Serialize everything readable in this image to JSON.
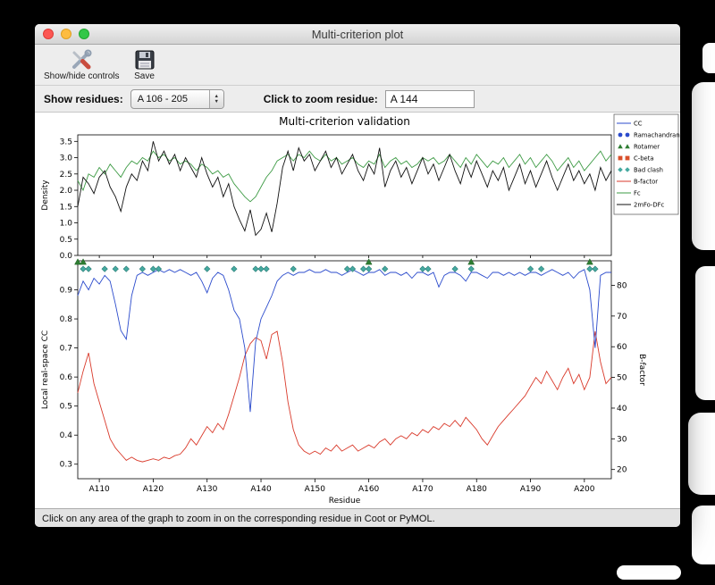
{
  "window": {
    "title": "Multi-criterion plot",
    "toolbar": {
      "show_hide_label": "Show/hide controls",
      "save_label": "Save"
    },
    "controls": {
      "show_residues_label": "Show residues:",
      "residue_range_value": "A 106 - 205",
      "zoom_residue_label": "Click to zoom residue:",
      "zoom_residue_value": "A 144"
    },
    "status_bar": "Click on any area of the graph to zoom in on the corresponding residue in Coot or PyMOL."
  },
  "icons": {
    "stepper_up": "▲",
    "stepper_down": "▼"
  },
  "chart_data": {
    "type": "line",
    "title": "Multi-criterion validation",
    "xlabel": "Residue",
    "x_range": [
      106,
      205
    ],
    "x_ticks": [
      "A110",
      "A120",
      "A130",
      "A140",
      "A150",
      "A160",
      "A170",
      "A180",
      "A190",
      "A200"
    ],
    "top_plot": {
      "ylabel": "Density",
      "ylim": [
        0,
        3.7
      ],
      "yticks": [
        0.0,
        0.5,
        1.0,
        1.5,
        2.0,
        2.5,
        3.0,
        3.5
      ],
      "series": [
        {
          "name": "Fc",
          "color": "#3e9b45",
          "values": [
            2.3,
            2.0,
            2.5,
            2.4,
            2.7,
            2.5,
            2.8,
            2.6,
            2.4,
            2.7,
            2.9,
            2.8,
            3.0,
            2.9,
            3.2,
            3.0,
            3.1,
            2.9,
            3.0,
            2.8,
            2.9,
            2.8,
            2.6,
            2.8,
            2.7,
            2.5,
            2.6,
            2.4,
            2.5,
            2.2,
            2.0,
            1.8,
            1.65,
            1.8,
            2.1,
            2.4,
            2.6,
            2.9,
            3.0,
            3.1,
            2.9,
            3.1,
            3.0,
            3.2,
            3.0,
            2.9,
            3.1,
            2.9,
            3.0,
            2.8,
            2.9,
            3.0,
            2.8,
            2.7,
            2.9,
            2.8,
            3.1,
            2.7,
            2.9,
            3.0,
            2.8,
            2.9,
            2.7,
            2.8,
            3.0,
            2.9,
            3.0,
            2.8,
            2.9,
            3.1,
            2.9,
            2.7,
            3.0,
            2.8,
            3.1,
            2.9,
            2.7,
            2.9,
            2.8,
            3.0,
            2.7,
            2.9,
            3.1,
            2.8,
            3.0,
            2.7,
            2.9,
            3.1,
            2.9,
            2.6,
            2.8,
            3.0,
            2.7,
            2.9,
            2.6,
            2.8,
            3.0,
            3.2,
            2.9,
            3.1
          ]
        },
        {
          "name": "2mFo-DFc",
          "color": "#111111",
          "values": [
            1.5,
            2.4,
            2.2,
            1.9,
            2.4,
            2.6,
            2.1,
            1.8,
            1.35,
            2.1,
            2.5,
            2.3,
            2.9,
            2.6,
            3.5,
            2.9,
            3.2,
            2.8,
            3.1,
            2.6,
            3.0,
            2.7,
            2.4,
            3.0,
            2.5,
            2.1,
            2.4,
            1.8,
            2.2,
            1.5,
            1.1,
            0.75,
            1.4,
            0.62,
            0.8,
            1.3,
            0.72,
            1.6,
            2.7,
            3.2,
            2.6,
            3.3,
            2.9,
            3.1,
            2.6,
            2.9,
            3.2,
            2.7,
            3.0,
            2.5,
            2.8,
            3.1,
            2.6,
            2.3,
            2.8,
            2.5,
            3.3,
            2.1,
            2.6,
            2.9,
            2.4,
            2.7,
            2.2,
            2.6,
            3.0,
            2.5,
            2.8,
            2.3,
            2.7,
            3.1,
            2.6,
            2.2,
            2.8,
            2.4,
            2.9,
            2.5,
            2.1,
            2.6,
            2.3,
            2.7,
            2.0,
            2.4,
            2.8,
            2.2,
            2.6,
            2.1,
            2.5,
            2.9,
            2.4,
            2.0,
            2.4,
            2.8,
            2.3,
            2.6,
            2.2,
            2.5,
            2.0,
            2.7,
            2.3,
            2.6
          ]
        }
      ]
    },
    "bottom_plot": {
      "ylabel_left": "Local real-space CC",
      "ylabel_left_color": "#2b4bcc",
      "ylim_left": [
        0.25,
        1.0
      ],
      "yticks_left": [
        0.3,
        0.4,
        0.5,
        0.6,
        0.7,
        0.8,
        0.9
      ],
      "ylabel_right": "B-factor",
      "ylabel_right_color": "#d93a2b",
      "ylim_right": [
        17,
        88
      ],
      "yticks_right": [
        20,
        30,
        40,
        50,
        60,
        70,
        80
      ],
      "cc": {
        "name": "CC",
        "color": "#2b4bcc",
        "values": [
          0.88,
          0.93,
          0.9,
          0.94,
          0.92,
          0.95,
          0.93,
          0.85,
          0.76,
          0.73,
          0.88,
          0.95,
          0.96,
          0.95,
          0.96,
          0.97,
          0.96,
          0.97,
          0.96,
          0.97,
          0.96,
          0.95,
          0.96,
          0.93,
          0.89,
          0.94,
          0.96,
          0.95,
          0.9,
          0.83,
          0.8,
          0.7,
          0.48,
          0.72,
          0.8,
          0.84,
          0.88,
          0.93,
          0.95,
          0.96,
          0.95,
          0.96,
          0.96,
          0.97,
          0.96,
          0.96,
          0.97,
          0.96,
          0.96,
          0.95,
          0.96,
          0.97,
          0.96,
          0.95,
          0.96,
          0.96,
          0.97,
          0.95,
          0.96,
          0.96,
          0.95,
          0.96,
          0.94,
          0.96,
          0.96,
          0.95,
          0.96,
          0.91,
          0.95,
          0.96,
          0.96,
          0.95,
          0.93,
          0.96,
          0.96,
          0.95,
          0.94,
          0.96,
          0.96,
          0.95,
          0.96,
          0.95,
          0.96,
          0.95,
          0.96,
          0.96,
          0.95,
          0.96,
          0.97,
          0.96,
          0.95,
          0.96,
          0.94,
          0.96,
          0.97,
          0.9,
          0.7,
          0.95,
          0.96,
          0.96
        ]
      },
      "bfactor": {
        "name": "B-factor",
        "color": "#d93a2b",
        "values": [
          45,
          52,
          58,
          48,
          42,
          36,
          30,
          27,
          25,
          23,
          24,
          23,
          22.5,
          23,
          23.5,
          23,
          24,
          23.5,
          24.5,
          25,
          27,
          30,
          28,
          31,
          34,
          32,
          35,
          33,
          38,
          44,
          50,
          57,
          61,
          63,
          62,
          56,
          64,
          65,
          55,
          42,
          33,
          28,
          26,
          25,
          26,
          25,
          27,
          26,
          28,
          26,
          27,
          28,
          26,
          27,
          28,
          27,
          29,
          30,
          28,
          30,
          31,
          30,
          32,
          31,
          33,
          32,
          34,
          33,
          35,
          34,
          36,
          34,
          37,
          35,
          33,
          30,
          28,
          31,
          34,
          36,
          38,
          40,
          42,
          44,
          47,
          50,
          48,
          52,
          49,
          46,
          50,
          53,
          48,
          51,
          46,
          50,
          65,
          55,
          48,
          50
        ]
      },
      "markers": {
        "bad_clash": {
          "shape": "diamond",
          "color": "#45a9a0",
          "edge": "#2a7d76",
          "y": 0.972,
          "residues": [
            107,
            108,
            111,
            113,
            115,
            118,
            120,
            121,
            130,
            135,
            139,
            140,
            141,
            146,
            156,
            157,
            159,
            160,
            163,
            170,
            171,
            176,
            179,
            190,
            192,
            201,
            202
          ]
        },
        "rotamer": {
          "shape": "triangle",
          "color": "#2e7d32",
          "edge": "#1b5e20",
          "y": 0.996,
          "residues": [
            106,
            107,
            160,
            179,
            201
          ]
        },
        "ramachandran": {
          "shape": "circle",
          "color": "#2b4bcc",
          "residues": []
        },
        "c_beta": {
          "shape": "square",
          "color": "#d9502b",
          "residues": []
        }
      }
    },
    "legend": [
      {
        "label": "CC",
        "type": "line",
        "color": "#2b4bcc"
      },
      {
        "label": "Ramachandran",
        "type": "circle",
        "color": "#2b4bcc"
      },
      {
        "label": "Rotamer",
        "type": "triangle",
        "color": "#2e7d32"
      },
      {
        "label": "C-beta",
        "type": "square",
        "color": "#d9502b"
      },
      {
        "label": "Bad clash",
        "type": "diamond",
        "color": "#45a9a0"
      },
      {
        "label": "B-factor",
        "type": "line",
        "color": "#d93a2b"
      },
      {
        "label": "Fc",
        "type": "line",
        "color": "#3e9b45"
      },
      {
        "label": "2mFo-DFc",
        "type": "line",
        "color": "#111111"
      }
    ]
  }
}
